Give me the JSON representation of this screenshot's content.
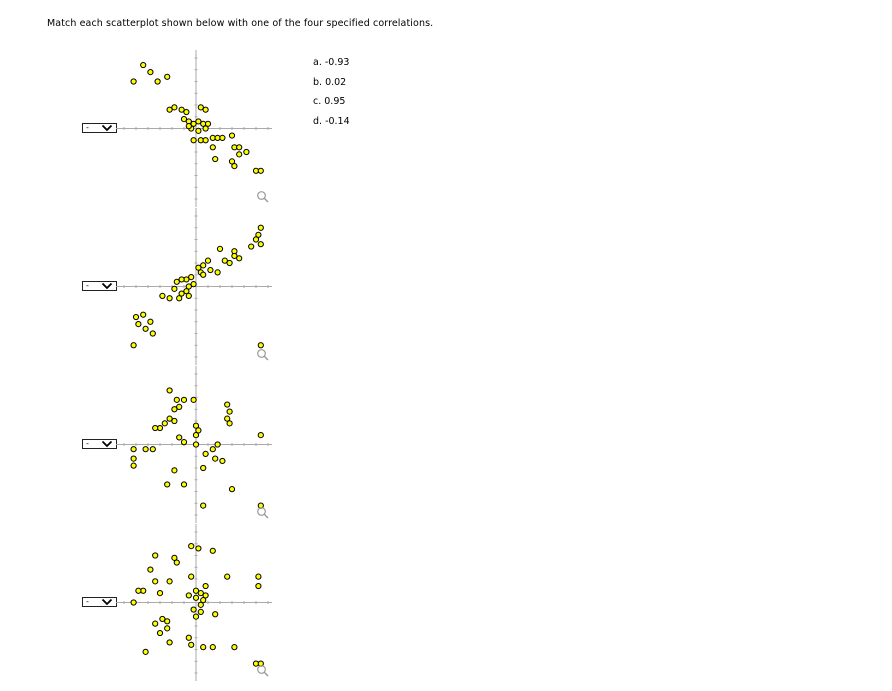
{
  "instructions": "Match each scatterplot shown below with one of the four specified correlations.",
  "options": [
    "a. -0.93",
    "b. 0.02",
    "c. 0.95",
    "d. -0.14"
  ],
  "selects": [
    {
      "selected": "-",
      "icon": "chevron-down-icon"
    },
    {
      "selected": "-",
      "icon": "chevron-down-icon"
    },
    {
      "selected": "-",
      "icon": "chevron-down-icon"
    },
    {
      "selected": "-",
      "icon": "chevron-down-icon"
    }
  ],
  "colors": {
    "marker_fill": "#ffff00",
    "marker_stroke": "#000000",
    "axis": "#aaaaaa"
  },
  "chart_data": [
    {
      "type": "scatter",
      "xlim": [
        -3,
        3
      ],
      "ylim": [
        -3,
        3
      ],
      "points": [
        [
          -2.6,
          2.0
        ],
        [
          -2.2,
          2.7
        ],
        [
          -1.9,
          2.4
        ],
        [
          -1.6,
          2.0
        ],
        [
          -1.2,
          2.2
        ],
        [
          -1.1,
          0.8
        ],
        [
          -0.9,
          0.9
        ],
        [
          -0.6,
          0.8
        ],
        [
          -0.4,
          0.7
        ],
        [
          0.2,
          0.9
        ],
        [
          0.4,
          0.8
        ],
        [
          -0.5,
          0.4
        ],
        [
          -0.3,
          0.3
        ],
        [
          -0.1,
          0.2
        ],
        [
          0.1,
          0.3
        ],
        [
          0.3,
          0.2
        ],
        [
          0.4,
          0.0
        ],
        [
          -0.2,
          0.0
        ],
        [
          0.1,
          -0.1
        ],
        [
          -0.3,
          0.1
        ],
        [
          0.5,
          0.2
        ],
        [
          -0.1,
          -0.5
        ],
        [
          0.2,
          -0.5
        ],
        [
          0.4,
          -0.5
        ],
        [
          0.7,
          -0.4
        ],
        [
          0.9,
          -0.4
        ],
        [
          1.1,
          -0.4
        ],
        [
          1.5,
          -0.3
        ],
        [
          1.6,
          -0.8
        ],
        [
          1.8,
          -0.8
        ],
        [
          0.7,
          -0.8
        ],
        [
          1.8,
          -1.1
        ],
        [
          2.1,
          -1.0
        ],
        [
          0.8,
          -1.3
        ],
        [
          1.5,
          -1.4
        ],
        [
          1.6,
          -1.6
        ],
        [
          2.5,
          -1.8
        ],
        [
          2.7,
          -1.8
        ]
      ]
    },
    {
      "type": "scatter",
      "xlim": [
        -3,
        3
      ],
      "ylim": [
        -3,
        3
      ],
      "points": [
        [
          2.7,
          2.5
        ],
        [
          2.6,
          2.2
        ],
        [
          2.5,
          2.0
        ],
        [
          2.7,
          1.8
        ],
        [
          2.3,
          1.7
        ],
        [
          1.6,
          1.5
        ],
        [
          1.8,
          1.2
        ],
        [
          1.4,
          1.0
        ],
        [
          1.6,
          1.3
        ],
        [
          1.0,
          1.6
        ],
        [
          1.2,
          1.1
        ],
        [
          0.5,
          1.1
        ],
        [
          0.3,
          0.9
        ],
        [
          0.6,
          0.7
        ],
        [
          0.2,
          0.6
        ],
        [
          0.1,
          0.8
        ],
        [
          0.3,
          0.5
        ],
        [
          0.9,
          0.6
        ],
        [
          -0.4,
          0.3
        ],
        [
          -0.2,
          0.4
        ],
        [
          -0.8,
          0.2
        ],
        [
          -0.6,
          0.3
        ],
        [
          -0.3,
          0.0
        ],
        [
          -0.9,
          -0.1
        ],
        [
          -0.6,
          -0.3
        ],
        [
          -0.4,
          -0.2
        ],
        [
          -0.3,
          -0.4
        ],
        [
          -0.1,
          0.1
        ],
        [
          -1.4,
          -0.4
        ],
        [
          -1.1,
          -0.5
        ],
        [
          -0.7,
          -0.5
        ],
        [
          -2.5,
          -1.3
        ],
        [
          -2.2,
          -1.2
        ],
        [
          -2.4,
          -1.6
        ],
        [
          -1.9,
          -1.5
        ],
        [
          -2.1,
          -1.8
        ],
        [
          -1.8,
          -2.0
        ],
        [
          -2.6,
          -2.5
        ],
        [
          2.7,
          -2.5
        ]
      ]
    },
    {
      "type": "scatter",
      "xlim": [
        -3,
        3
      ],
      "ylim": [
        -3,
        3
      ],
      "points": [
        [
          -1.1,
          2.3
        ],
        [
          -0.8,
          1.9
        ],
        [
          -0.5,
          1.9
        ],
        [
          -0.1,
          1.9
        ],
        [
          -0.7,
          1.6
        ],
        [
          -0.9,
          1.5
        ],
        [
          1.3,
          1.7
        ],
        [
          1.4,
          1.4
        ],
        [
          1.3,
          1.1
        ],
        [
          1.4,
          0.9
        ],
        [
          -1.1,
          1.1
        ],
        [
          -0.9,
          1.0
        ],
        [
          -1.3,
          0.9
        ],
        [
          -1.5,
          0.7
        ],
        [
          -1.7,
          0.7
        ],
        [
          0.0,
          0.8
        ],
        [
          0.1,
          0.6
        ],
        [
          0.0,
          0.4
        ],
        [
          2.7,
          0.4
        ],
        [
          -0.7,
          0.3
        ],
        [
          -0.5,
          0.1
        ],
        [
          0.0,
          0.0
        ],
        [
          0.9,
          0.0
        ],
        [
          0.7,
          -0.2
        ],
        [
          -2.6,
          -0.2
        ],
        [
          -2.1,
          -0.2
        ],
        [
          -1.8,
          -0.2
        ],
        [
          0.4,
          -0.4
        ],
        [
          0.8,
          -0.6
        ],
        [
          1.1,
          -0.7
        ],
        [
          -2.6,
          -0.6
        ],
        [
          -2.6,
          -0.9
        ],
        [
          -0.9,
          -1.1
        ],
        [
          0.3,
          -1.0
        ],
        [
          -1.2,
          -1.7
        ],
        [
          -0.5,
          -1.7
        ],
        [
          1.5,
          -1.9
        ],
        [
          0.3,
          -2.6
        ],
        [
          2.7,
          -2.6
        ]
      ]
    },
    {
      "type": "scatter",
      "xlim": [
        -3,
        3
      ],
      "ylim": [
        -3,
        3
      ],
      "points": [
        [
          -0.2,
          2.4
        ],
        [
          0.1,
          2.3
        ],
        [
          0.7,
          2.2
        ],
        [
          -1.7,
          2.0
        ],
        [
          -0.9,
          1.9
        ],
        [
          -0.8,
          1.7
        ],
        [
          -1.9,
          1.4
        ],
        [
          -0.2,
          1.1
        ],
        [
          1.3,
          1.1
        ],
        [
          2.6,
          1.1
        ],
        [
          -1.7,
          0.9
        ],
        [
          -1.1,
          0.9
        ],
        [
          0.4,
          0.7
        ],
        [
          2.6,
          0.7
        ],
        [
          -2.2,
          0.5
        ],
        [
          -2.4,
          0.5
        ],
        [
          -1.5,
          0.4
        ],
        [
          0.0,
          0.5
        ],
        [
          0.2,
          0.4
        ],
        [
          -2.6,
          0.0
        ],
        [
          -0.3,
          0.3
        ],
        [
          0.0,
          0.2
        ],
        [
          0.3,
          0.1
        ],
        [
          0.4,
          0.3
        ],
        [
          0.2,
          -0.1
        ],
        [
          -0.1,
          -0.3
        ],
        [
          0.2,
          -0.4
        ],
        [
          0.0,
          -0.6
        ],
        [
          0.8,
          -0.5
        ],
        [
          -1.4,
          -0.7
        ],
        [
          -1.2,
          -0.8
        ],
        [
          -1.7,
          -0.9
        ],
        [
          -1.2,
          -1.1
        ],
        [
          -1.5,
          -1.3
        ],
        [
          -0.3,
          -1.5
        ],
        [
          -0.2,
          -1.8
        ],
        [
          -1.1,
          -1.7
        ],
        [
          -2.1,
          -2.1
        ],
        [
          0.3,
          -1.9
        ],
        [
          0.7,
          -1.9
        ],
        [
          1.6,
          -1.9
        ],
        [
          2.5,
          -2.6
        ],
        [
          2.7,
          -2.6
        ]
      ]
    }
  ]
}
